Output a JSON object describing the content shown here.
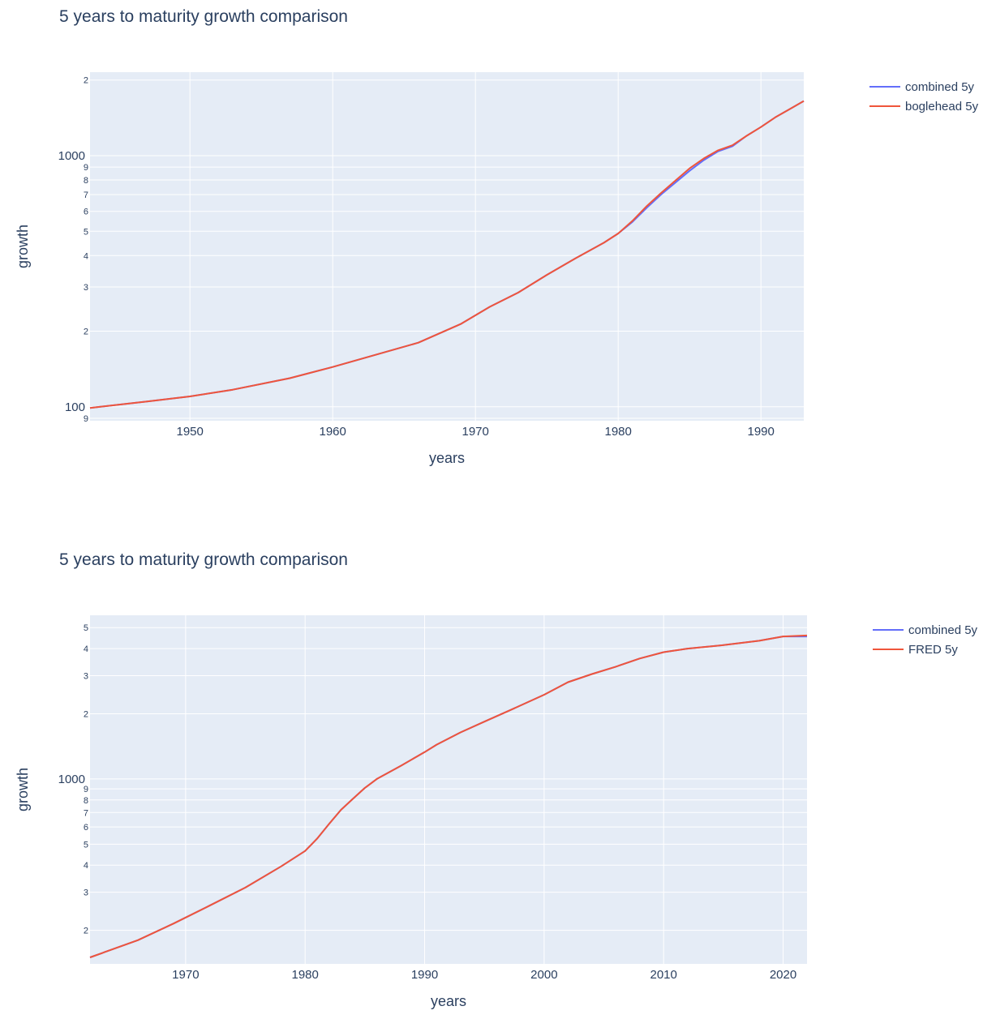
{
  "colors": {
    "combined": "#636efa",
    "second": "#ef553b",
    "plot_bg": "#e5ecf6",
    "grid": "#ffffff",
    "text": "#2a3f5f"
  },
  "chart_data": [
    {
      "type": "line",
      "title": "5 years to maturity growth comparison",
      "xlabel": "years",
      "ylabel": "growth",
      "y_scale": "log",
      "xlim": [
        1943,
        1993
      ],
      "ylim": [
        88,
        2150
      ],
      "x_ticks": [
        1950,
        1960,
        1970,
        1980,
        1990
      ],
      "y_major_ticks": [
        {
          "value": 100,
          "label": "100"
        },
        {
          "value": 1000,
          "label": "1000"
        }
      ],
      "y_minor_ticks": [
        {
          "value": 90,
          "label": "9"
        },
        {
          "value": 200,
          "label": "2"
        },
        {
          "value": 300,
          "label": "3"
        },
        {
          "value": 400,
          "label": "4"
        },
        {
          "value": 500,
          "label": "5"
        },
        {
          "value": 600,
          "label": "6"
        },
        {
          "value": 700,
          "label": "7"
        },
        {
          "value": 800,
          "label": "8"
        },
        {
          "value": 900,
          "label": "9"
        },
        {
          "value": 2000,
          "label": "2"
        }
      ],
      "legend_position": "top-right",
      "series": [
        {
          "name": "combined 5y",
          "color_key": "combined",
          "x": [
            1943,
            1947,
            1950,
            1953,
            1957,
            1960,
            1963,
            1966,
            1969,
            1971,
            1973,
            1975,
            1977,
            1979,
            1980,
            1981,
            1982,
            1983,
            1984,
            1985,
            1986,
            1987,
            1988,
            1989,
            1990,
            1991,
            1992,
            1993
          ],
          "y": [
            99,
            105,
            110,
            117,
            130,
            144,
            161,
            180,
            214,
            250,
            285,
            335,
            390,
            450,
            490,
            545,
            620,
            700,
            780,
            870,
            960,
            1040,
            1090,
            1200,
            1300,
            1420,
            1530,
            1650
          ]
        },
        {
          "name": "boglehead 5y",
          "color_key": "second",
          "x": [
            1943,
            1947,
            1950,
            1953,
            1957,
            1960,
            1963,
            1966,
            1969,
            1971,
            1973,
            1975,
            1977,
            1979,
            1980,
            1981,
            1982,
            1983,
            1984,
            1985,
            1986,
            1987,
            1988,
            1989,
            1990,
            1991,
            1992,
            1993
          ],
          "y": [
            99,
            105,
            110,
            117,
            130,
            144,
            161,
            180,
            214,
            250,
            285,
            335,
            390,
            450,
            490,
            550,
            630,
            710,
            795,
            890,
            975,
            1050,
            1100,
            1200,
            1300,
            1420,
            1530,
            1650
          ]
        }
      ]
    },
    {
      "type": "line",
      "title": "5 years to maturity growth comparison",
      "xlabel": "years",
      "ylabel": "growth",
      "y_scale": "log",
      "xlim": [
        1962,
        2022
      ],
      "ylim": [
        140,
        5700
      ],
      "x_ticks": [
        1970,
        1980,
        1990,
        2000,
        2010,
        2020
      ],
      "y_major_ticks": [
        {
          "value": 1000,
          "label": "1000"
        }
      ],
      "y_minor_ticks": [
        {
          "value": 200,
          "label": "2"
        },
        {
          "value": 300,
          "label": "3"
        },
        {
          "value": 400,
          "label": "4"
        },
        {
          "value": 500,
          "label": "5"
        },
        {
          "value": 600,
          "label": "6"
        },
        {
          "value": 700,
          "label": "7"
        },
        {
          "value": 800,
          "label": "8"
        },
        {
          "value": 900,
          "label": "9"
        },
        {
          "value": 2000,
          "label": "2"
        },
        {
          "value": 3000,
          "label": "3"
        },
        {
          "value": 4000,
          "label": "4"
        },
        {
          "value": 5000,
          "label": "5"
        }
      ],
      "legend_position": "top-right",
      "series": [
        {
          "name": "combined 5y",
          "color_key": "combined",
          "x": [
            1962,
            1966,
            1969,
            1972,
            1975,
            1978,
            1980,
            1981,
            1982,
            1983,
            1984,
            1985,
            1986,
            1988,
            1990,
            1991,
            1993,
            1995,
            1997,
            2000,
            2002,
            2004,
            2006,
            2008,
            2010,
            2012,
            2015,
            2018,
            2020,
            2022
          ],
          "y": [
            150,
            180,
            215,
            260,
            315,
            395,
            465,
            530,
            620,
            720,
            810,
            910,
            1000,
            1150,
            1330,
            1440,
            1640,
            1840,
            2060,
            2450,
            2800,
            3050,
            3300,
            3600,
            3850,
            4000,
            4150,
            4350,
            4550,
            4550
          ]
        },
        {
          "name": "FRED 5y",
          "color_key": "second",
          "x": [
            1962,
            1966,
            1969,
            1972,
            1975,
            1978,
            1980,
            1981,
            1982,
            1983,
            1984,
            1985,
            1986,
            1988,
            1990,
            1991,
            1993,
            1995,
            1997,
            2000,
            2002,
            2004,
            2006,
            2008,
            2010,
            2012,
            2015,
            2018,
            2020,
            2022
          ],
          "y": [
            150,
            180,
            215,
            260,
            315,
            395,
            465,
            530,
            620,
            720,
            810,
            910,
            1000,
            1150,
            1330,
            1440,
            1640,
            1840,
            2060,
            2450,
            2800,
            3050,
            3300,
            3600,
            3850,
            4000,
            4150,
            4350,
            4550,
            4600
          ]
        }
      ]
    }
  ]
}
